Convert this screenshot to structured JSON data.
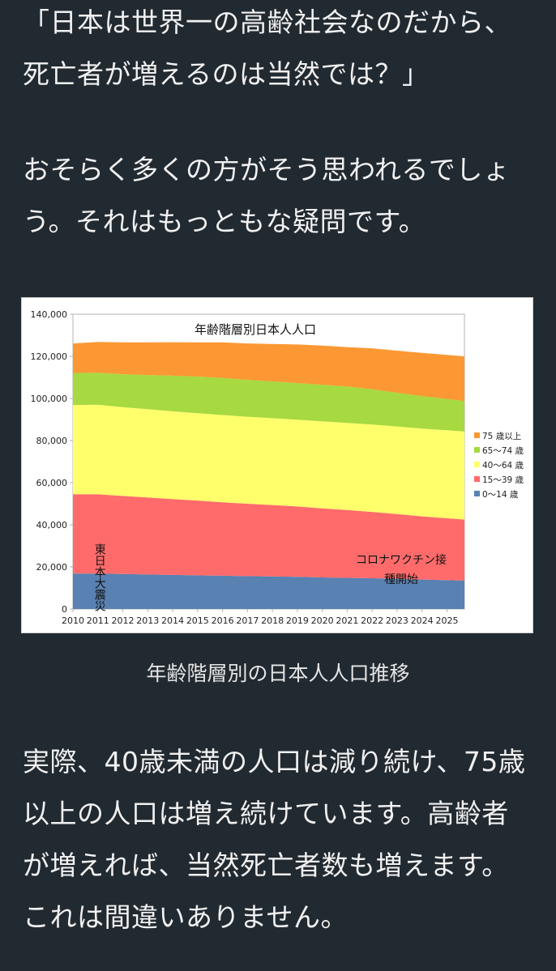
{
  "intro": {
    "lines": [
      "「日本は世界一の高齢社会なのだから、",
      "死亡者が増えるのは当然では？」"
    ]
  },
  "paragraph1": {
    "lines": [
      "おそらく多くの方がそう思われるでしょ",
      "う。それはもっともな疑問です。"
    ]
  },
  "caption": "年齢階層別の日本人人口推移",
  "paragraph2": {
    "lines": [
      "実際、40歳未満の人口は減り続け、75歳",
      "以上の人口は増え続けています。高齢者",
      "が増えれば、当然死亡者数も増えます。",
      "これは間違いありません。"
    ]
  },
  "colors": {
    "page_bg": "#222a31",
    "text": "#f1f1f1",
    "s0_14": "#5981b1",
    "s15_39": "#ff6b6b",
    "s40_64": "#ffff6b",
    "s65_74": "#a7d940",
    "s75": "#fb9833"
  },
  "chart_data": {
    "type": "area",
    "stacked": true,
    "title": "年齢階層別日本人人口",
    "xlabel": "",
    "ylabel": "",
    "x": [
      2010,
      2011,
      2012,
      2013,
      2014,
      2015,
      2016,
      2017,
      2018,
      2019,
      2020,
      2021,
      2022,
      2023,
      2024,
      2025.7
    ],
    "x_ticks": [
      "2010",
      "2011",
      "2012",
      "2013",
      "2014",
      "2015",
      "2016",
      "2017",
      "2018",
      "2019",
      "2020",
      "2021",
      "2022",
      "2023",
      "2024",
      "2025"
    ],
    "ylim": [
      0,
      140000
    ],
    "y_ticks": [
      "0",
      "20,000",
      "40,000",
      "60,000",
      "80,000",
      "100,000",
      "120,000",
      "140,000"
    ],
    "grid": true,
    "legend_position": "right",
    "series": [
      {
        "name": "0～14歳",
        "color": "#5981b1",
        "values": [
          16800,
          16800,
          16600,
          16400,
          16200,
          16000,
          15800,
          15600,
          15500,
          15300,
          15000,
          14800,
          14600,
          14300,
          14000,
          13500
        ]
      },
      {
        "name": "15～39歳",
        "color": "#ff6b6b",
        "values": [
          37700,
          37700,
          37100,
          36600,
          36000,
          35500,
          34900,
          34400,
          33900,
          33400,
          32800,
          32200,
          31500,
          30800,
          30000,
          29000
        ]
      },
      {
        "name": "40～64歳",
        "color": "#ffff6b",
        "values": [
          42400,
          42500,
          42200,
          41900,
          41700,
          41500,
          41400,
          41300,
          41200,
          41200,
          41300,
          41400,
          41500,
          41600,
          41700,
          41800
        ]
      },
      {
        "name": "65～74歳",
        "color": "#a7d940",
        "values": [
          15200,
          15200,
          15600,
          16200,
          16900,
          17400,
          17600,
          17500,
          17500,
          17400,
          17400,
          17300,
          16700,
          16000,
          15400,
          14500
        ]
      },
      {
        "name": "75歳以上",
        "color": "#fb9833",
        "values": [
          14000,
          14600,
          15100,
          15500,
          15900,
          16200,
          16900,
          17300,
          17800,
          18300,
          18600,
          18700,
          19500,
          20000,
          20500,
          21200
        ]
      }
    ],
    "legend": [
      "75 歳以上",
      "65～74 歳",
      "40～64 歳",
      "15～39 歳",
      "0～14 歳"
    ],
    "annotations": {
      "earthquake": "東日本大震災",
      "vaccine_line1": "コロナワクチン接",
      "vaccine_line2": "種開始"
    }
  }
}
